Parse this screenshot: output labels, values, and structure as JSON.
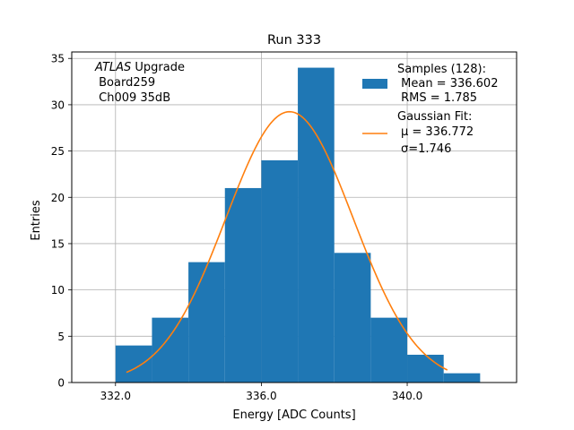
{
  "chart_data": {
    "type": "bar",
    "title": "Run 333",
    "xlabel": "Energy [ADC Counts]",
    "ylabel": "Entries",
    "xlim": [
      330.8,
      343.0
    ],
    "ylim": [
      0,
      35.7
    ],
    "xticks": [
      332.0,
      336.0,
      340.0
    ],
    "xtick_labels": [
      "332.0",
      "336.0",
      "340.0"
    ],
    "yticks": [
      0,
      5,
      10,
      15,
      20,
      25,
      30,
      35
    ],
    "ytick_labels": [
      "0",
      "5",
      "10",
      "15",
      "20",
      "25",
      "30",
      "35"
    ],
    "grid": true,
    "bin_edges": [
      332,
      333,
      334,
      335,
      336,
      337,
      338,
      339,
      340,
      341,
      342
    ],
    "values": [
      4,
      7,
      13,
      21,
      24,
      34,
      14,
      7,
      3,
      1
    ],
    "bar_color": "#1f77b4",
    "fit": {
      "mu": 336.772,
      "sigma": 1.746,
      "x_range": [
        332.3,
        341.1
      ],
      "color": "#ff7f0e"
    },
    "annotation_lines": [
      {
        "text": "ATLAS",
        "italic": true,
        "suffix": " Upgrade"
      },
      {
        "text": " Board259"
      },
      {
        "text": " Ch009 35dB"
      }
    ],
    "legend": {
      "position": "top-right",
      "hist_lines": [
        "Samples (128):",
        " Mean = 336.602",
        " RMS = 1.785"
      ],
      "fit_lines": [
        "Gaussian Fit:",
        "μ = 336.772",
        "σ=1.746"
      ]
    }
  }
}
